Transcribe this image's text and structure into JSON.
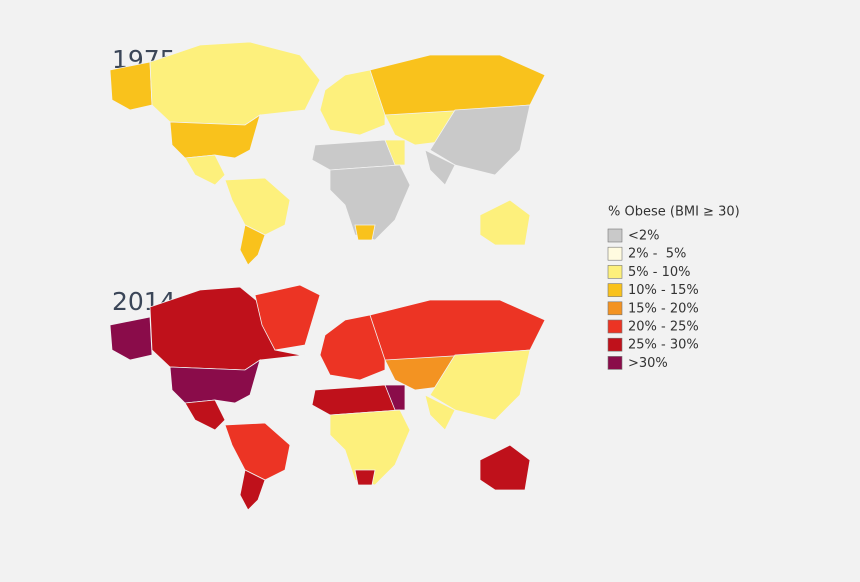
{
  "maps": [
    {
      "year": "1975"
    },
    {
      "year": "2014"
    }
  ],
  "legend": {
    "title": "% Obese (BMI ≥ 30)",
    "items": [
      {
        "label": "<2%",
        "color": "#c9c9c9"
      },
      {
        "label": "2% -  5%",
        "color": "#fffbe0"
      },
      {
        "label": "5% - 10%",
        "color": "#fdf07c"
      },
      {
        "label": "10% - 15%",
        "color": "#f9c21c"
      },
      {
        "label": "15% - 20%",
        "color": "#f39322"
      },
      {
        "label": "20% - 25%",
        "color": "#ec3424"
      },
      {
        "label": "25% - 30%",
        "color": "#bf111b"
      },
      {
        "label": ">30%",
        "color": "#8a0c4a"
      }
    ]
  }
}
